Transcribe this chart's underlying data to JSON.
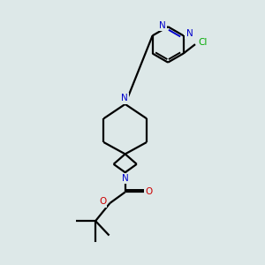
{
  "background_color": "#dde8e8",
  "bond_color": "#000000",
  "nitrogen_color": "#0000cc",
  "oxygen_color": "#cc0000",
  "chlorine_color": "#00aa00",
  "line_width": 1.6,
  "figsize": [
    3.0,
    3.0
  ],
  "dpi": 100,
  "xlim": [
    0,
    10
  ],
  "ylim": [
    0,
    10
  ]
}
